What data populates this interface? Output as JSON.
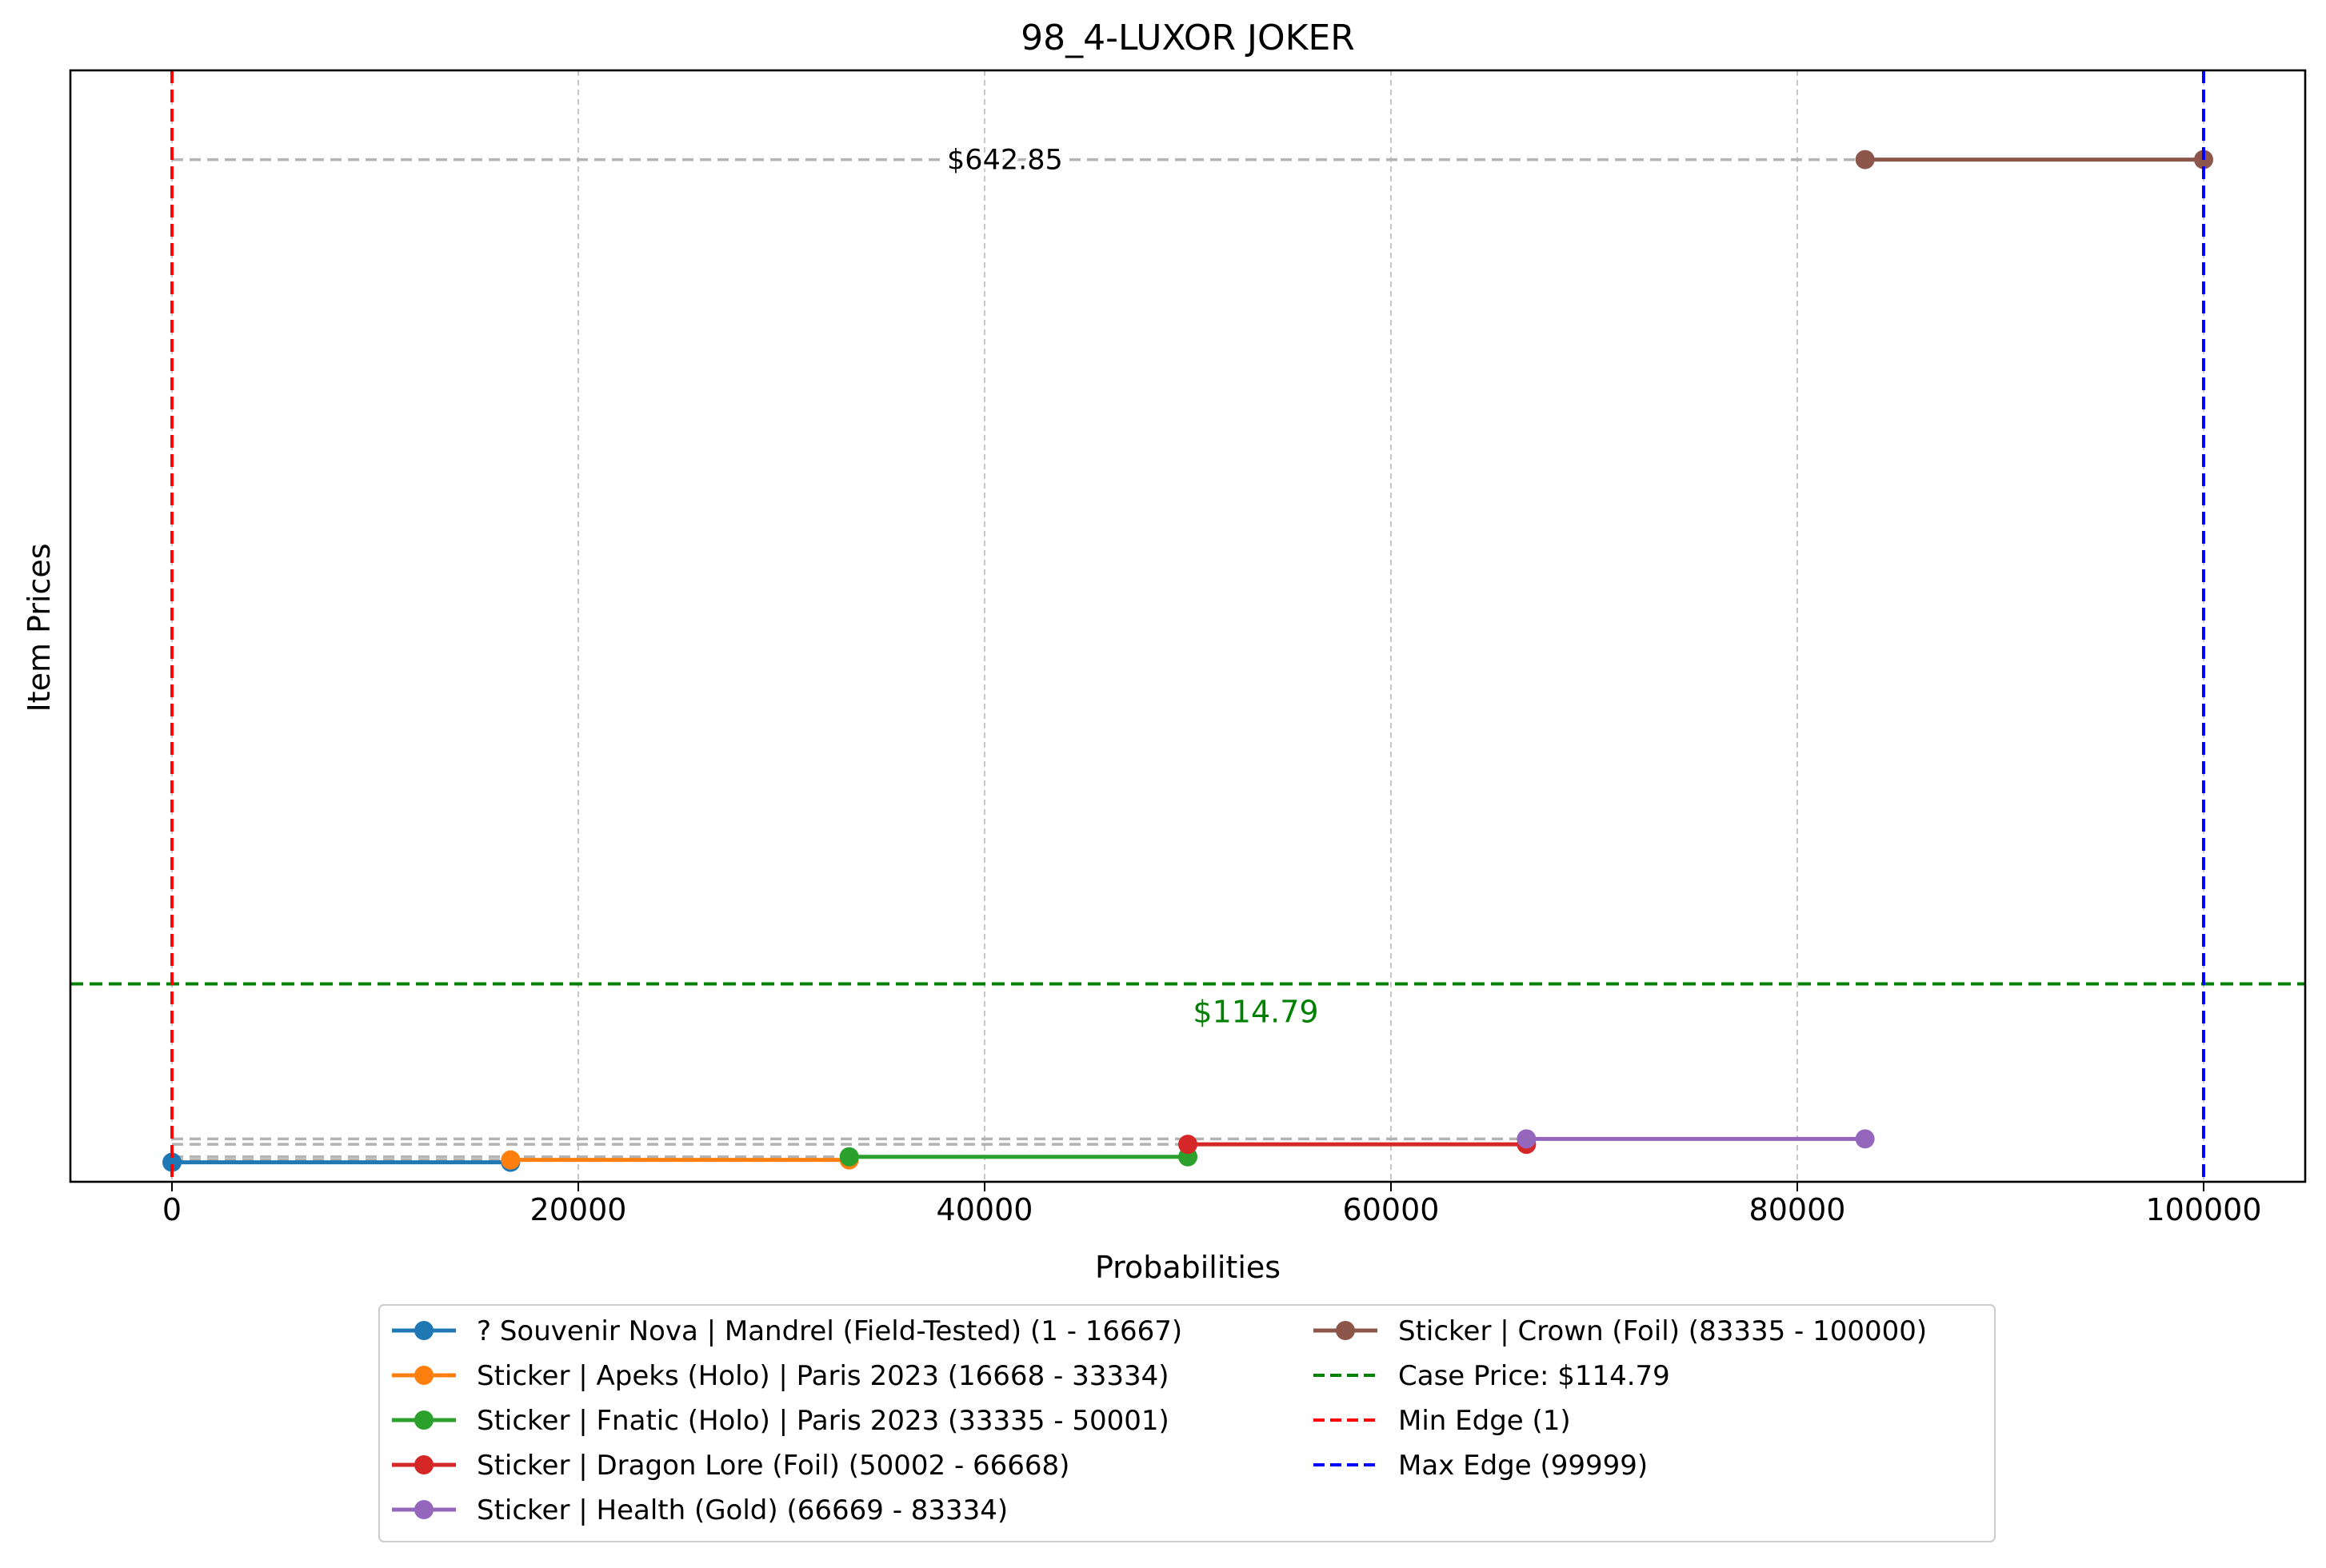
{
  "chart_data": {
    "type": "line",
    "title": "98_4-LUXOR JOKER",
    "xlabel": "Probabilities",
    "ylabel": "Item Prices",
    "xlim": [
      -5000,
      105000
    ],
    "ylim": [
      -12,
      700
    ],
    "xticks": [
      0,
      20000,
      40000,
      60000,
      80000,
      100000
    ],
    "xtick_labels": [
      "0",
      "20000",
      "40000",
      "60000",
      "80000",
      "100000"
    ],
    "yticks_visible": false,
    "grid": "x-axis dashed",
    "legend_position": "lower center (below plot), 2 columns",
    "series": [
      {
        "name": "? Souvenir Nova | Mandrel (Field-Tested) (1 - 16667)",
        "x": [
          1,
          16667
        ],
        "y": [
          0.5,
          0.5
        ],
        "color": "#1f77b4"
      },
      {
        "name": "Sticker | Apeks (Holo) | Paris 2023 (16668 - 33334)",
        "x": [
          16668,
          33334
        ],
        "y": [
          2,
          2
        ],
        "color": "#ff7f0e"
      },
      {
        "name": "Sticker | Fnatic (Holo) | Paris 2023 (33335 - 50001)",
        "x": [
          33335,
          50001
        ],
        "y": [
          4,
          4
        ],
        "color": "#2ca02c"
      },
      {
        "name": "Sticker | Dragon Lore (Foil) (50002 - 66668)",
        "x": [
          50002,
          66668
        ],
        "y": [
          12,
          12
        ],
        "color": "#d62728"
      },
      {
        "name": "Sticker | Health (Gold) (66669 - 83334)",
        "x": [
          66669,
          83334
        ],
        "y": [
          15.5,
          15.5
        ],
        "color": "#9467bd"
      },
      {
        "name": "Sticker | Crown (Foil) (83335 - 100000)",
        "x": [
          83335,
          100000
        ],
        "y": [
          642.85,
          642.85
        ],
        "color": "#8c564b"
      }
    ],
    "price_annotations": [
      {
        "text": "$642.85",
        "x": 41000,
        "y": 642.85,
        "color": "#000000"
      }
    ],
    "case_price": {
      "value": 114.79,
      "label": "Case Price: $114.79",
      "text": "$114.79",
      "color": "#008000"
    },
    "min_edge": {
      "value": 1,
      "label": "Min Edge (1)",
      "color": "#ff0000"
    },
    "max_edge": {
      "value": 99999,
      "label": "Max Edge (99999)",
      "color": "#0000ff"
    }
  }
}
